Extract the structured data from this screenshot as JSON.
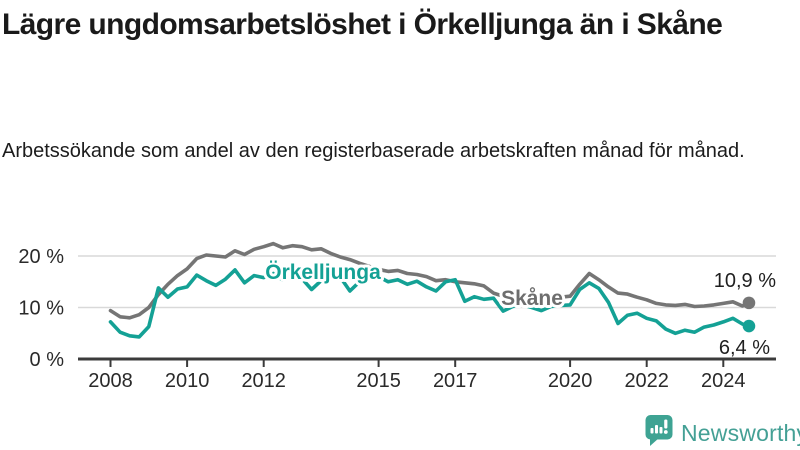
{
  "chart_data": {
    "type": "line",
    "title": "Lägre ungdomsarbetslöshet i Örkelljunga än i Skåne",
    "subtitle": "Arbetssökande som andel av den registerbaserade arbetskraften månad för månad.",
    "unit": "%",
    "ylim": [
      0,
      24
    ],
    "grid": "horizontal",
    "legend_position": "inline-labels",
    "y_ticks": [
      {
        "value": 0,
        "label": "0 %"
      },
      {
        "value": 10,
        "label": "10 %"
      },
      {
        "value": 20,
        "label": "20 %"
      }
    ],
    "x_ticks": [
      {
        "value": 2008,
        "label": "2008"
      },
      {
        "value": 2010,
        "label": "2010"
      },
      {
        "value": 2012,
        "label": "2012"
      },
      {
        "value": 2015,
        "label": "2015"
      },
      {
        "value": 2017,
        "label": "2017"
      },
      {
        "value": 2020,
        "label": "2020"
      },
      {
        "value": 2022,
        "label": "2022"
      },
      {
        "value": 2024,
        "label": "2024"
      }
    ],
    "x": [
      2008,
      2008.25,
      2008.5,
      2008.75,
      2009,
      2009.25,
      2009.5,
      2009.75,
      2010,
      2010.25,
      2010.5,
      2010.75,
      2011,
      2011.25,
      2011.5,
      2011.75,
      2012,
      2012.25,
      2012.5,
      2012.75,
      2013,
      2013.25,
      2013.5,
      2013.75,
      2014,
      2014.25,
      2014.5,
      2014.75,
      2015,
      2015.25,
      2015.5,
      2015.75,
      2016,
      2016.25,
      2016.5,
      2016.75,
      2017,
      2017.25,
      2017.5,
      2017.75,
      2018,
      2018.25,
      2018.5,
      2018.75,
      2019,
      2019.25,
      2019.5,
      2019.75,
      2020,
      2020.25,
      2020.5,
      2020.75,
      2021,
      2021.25,
      2021.5,
      2021.75,
      2022,
      2022.25,
      2022.5,
      2022.75,
      2023,
      2023.25,
      2023.5,
      2023.75,
      2024,
      2024.25,
      2024.5,
      2024.67
    ],
    "series": [
      {
        "name": "Skåne",
        "color": "#757575",
        "label_color": "#6e6e6e",
        "end_label": "10,9 %",
        "end_value": 10.9,
        "values": [
          9.4,
          8.2,
          8.0,
          8.6,
          10.0,
          12.5,
          14.5,
          16.2,
          17.5,
          19.5,
          20.2,
          20.0,
          19.8,
          21.0,
          20.3,
          21.3,
          21.8,
          22.4,
          21.6,
          22.0,
          21.8,
          21.2,
          21.4,
          20.5,
          19.8,
          19.3,
          18.6,
          18.0,
          17.4,
          17.0,
          17.2,
          16.6,
          16.4,
          16.0,
          15.2,
          15.4,
          15.0,
          14.8,
          14.6,
          14.2,
          12.8,
          12.2,
          12.0,
          11.9,
          11.7,
          11.5,
          11.8,
          12.0,
          12.2,
          14.5,
          16.6,
          15.4,
          14.0,
          12.8,
          12.6,
          12.0,
          11.5,
          10.8,
          10.5,
          10.4,
          10.6,
          10.2,
          10.3,
          10.5,
          10.8,
          11.1,
          10.3,
          10.9
        ]
      },
      {
        "name": "Örkelljunga",
        "color": "#14a195",
        "label_color": "#14a195",
        "end_label": "6,4 %",
        "end_value": 6.4,
        "values": [
          7.2,
          5.2,
          4.5,
          4.3,
          6.3,
          13.8,
          12.0,
          13.6,
          14.0,
          16.3,
          15.2,
          14.3,
          15.5,
          17.3,
          14.8,
          16.2,
          15.8,
          16.6,
          15.3,
          16.2,
          15.6,
          13.5,
          15.2,
          15.6,
          15.9,
          13.2,
          15.0,
          15.6,
          16.0,
          15.0,
          15.4,
          14.5,
          15.1,
          14.0,
          13.2,
          15.0,
          15.4,
          11.2,
          12.1,
          11.6,
          11.8,
          9.3,
          10.2,
          10.5,
          10.0,
          9.4,
          10.2,
          10.4,
          10.5,
          13.5,
          14.8,
          13.7,
          11.0,
          6.9,
          8.5,
          8.9,
          7.9,
          7.4,
          5.8,
          5.0,
          5.6,
          5.2,
          6.2,
          6.6,
          7.2,
          7.9,
          6.8,
          6.4
        ]
      }
    ]
  },
  "footer": {
    "brand_name": "Newsworthy"
  },
  "colors": {
    "accent_teal": "#14a195",
    "line_gray": "#757575",
    "brand_teal": "#44a095",
    "gridline": "#d9d9d9",
    "axis": "#3b3b3b",
    "text": "#1a1a1a"
  }
}
